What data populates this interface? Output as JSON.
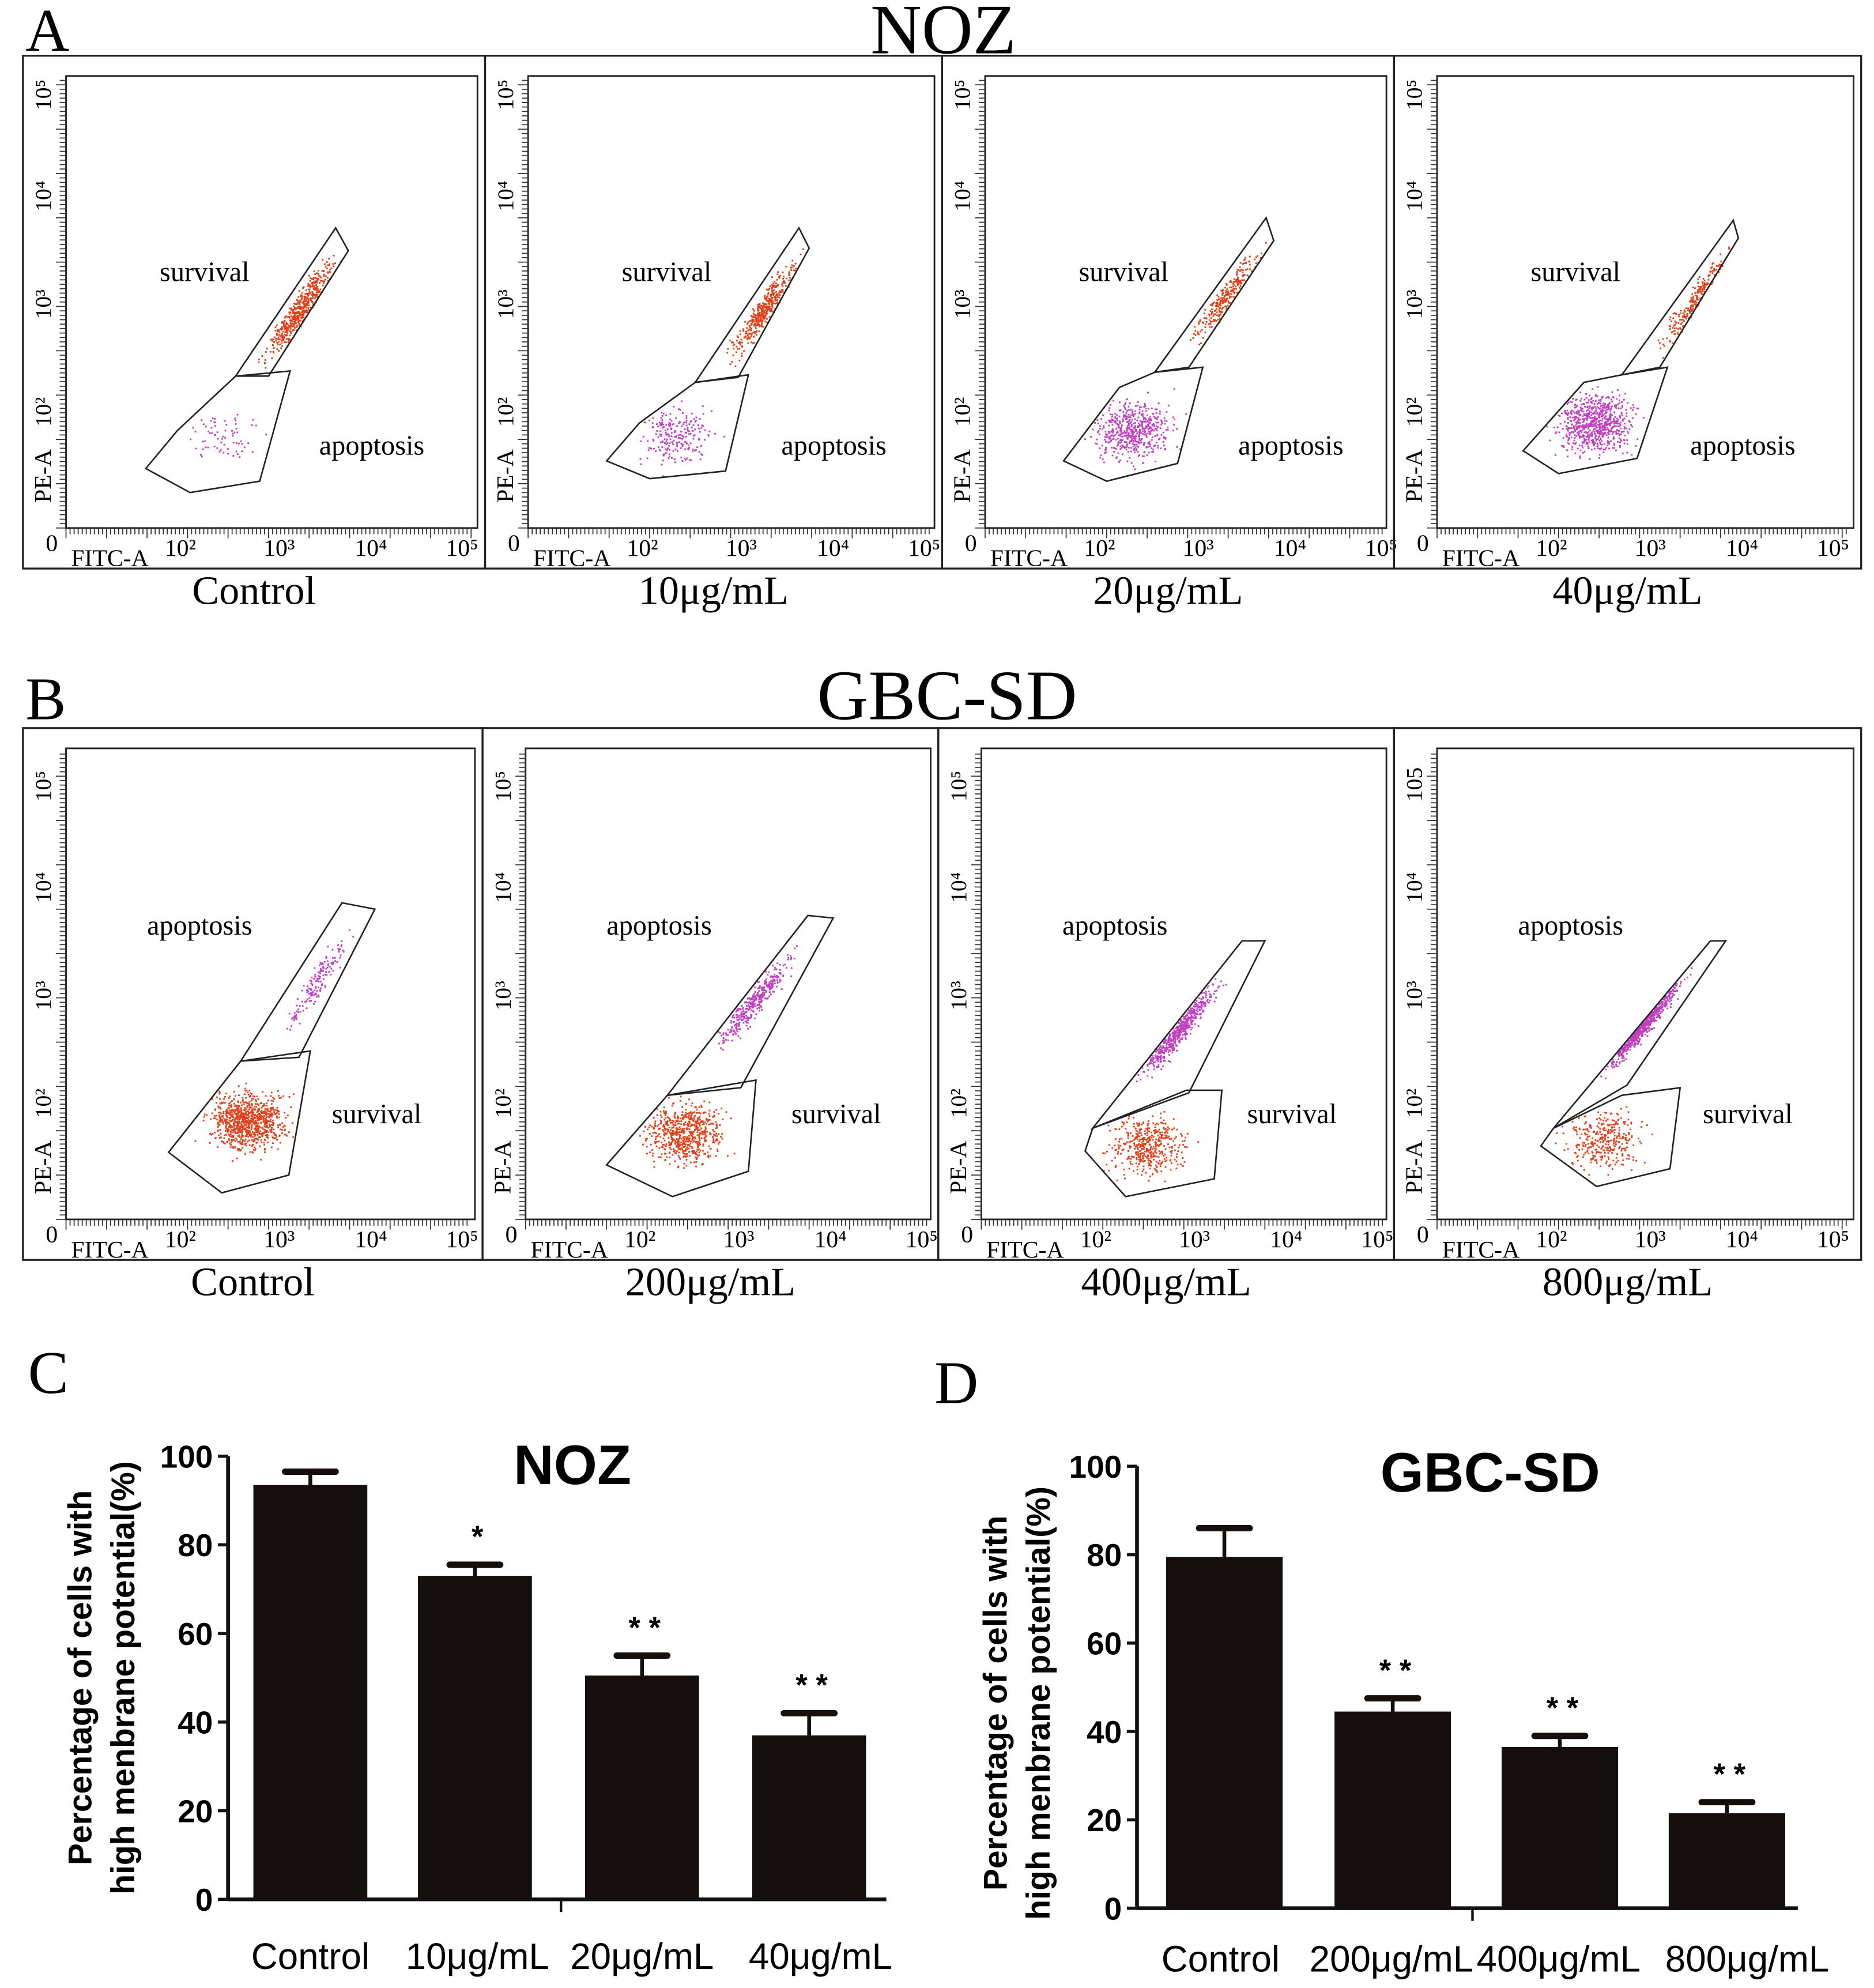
{
  "panel_letters": {
    "a": "A",
    "b": "B",
    "c": "C",
    "d": "D"
  },
  "flow_common": {
    "x_axis_label": "FITC-A",
    "y_axis_label": "PE-A",
    "x_ticks": [
      "0",
      "10²",
      "10³",
      "10⁴",
      "10⁵"
    ],
    "y_ticks": [
      "10²",
      "10³",
      "10⁴",
      "10⁵"
    ]
  },
  "panel_a": {
    "title": "NOZ",
    "upper_gate_label": "survival",
    "lower_gate_label": "apoptosis",
    "conditions": [
      "Control",
      "10μg/mL",
      "20μg/mL",
      "40μg/mL"
    ],
    "colors": {
      "upper": "#e0401a",
      "lower": "#c040c0"
    }
  },
  "panel_b": {
    "title": "GBC-SD",
    "upper_gate_label": "apoptosis",
    "lower_gate_label": "survival",
    "conditions": [
      "Control",
      "200μg/mL",
      "400μg/mL",
      "800μg/mL"
    ],
    "y_tick_top_last": "105",
    "colors": {
      "upper": "#c040c0",
      "lower": "#e0401a"
    }
  },
  "chart_data": [
    {
      "type": "bar",
      "title": "NOZ",
      "ylabel": "Percentage of cells with high menbrane potential(%)",
      "ylabel_lines": [
        "Percentage of cells with",
        "high menbrane potential(%)"
      ],
      "xlabel": "",
      "categories": [
        "Control",
        "10μg/mL",
        "20μg/mL",
        "40μg/mL"
      ],
      "values": [
        93.5,
        73,
        50.5,
        37
      ],
      "errors": [
        3,
        2.5,
        4.5,
        5
      ],
      "significance": [
        "",
        "*",
        "* *",
        "* *"
      ],
      "ylim": [
        0,
        100
      ],
      "yticks": [
        "0",
        "20",
        "40",
        "60",
        "80",
        "100"
      ],
      "bar_color": "#140f0c"
    },
    {
      "type": "bar",
      "title": "GBC-SD",
      "ylabel": "Percentage of cells with high menbrane potential(%)",
      "ylabel_lines": [
        "Percentage of cells with",
        "high menbrane potential(%)"
      ],
      "xlabel": "",
      "categories": [
        "Control",
        "200μg/mL",
        "400μg/mL",
        "800μg/mL"
      ],
      "values": [
        79.5,
        44.5,
        36.5,
        21.5
      ],
      "errors": [
        6.5,
        3,
        2.5,
        2.5
      ],
      "significance": [
        "",
        "* *",
        "* *",
        "* *"
      ],
      "ylim": [
        0,
        100
      ],
      "yticks": [
        "0",
        "20",
        "40",
        "60",
        "80",
        "100"
      ],
      "bar_color": "#140f0c"
    }
  ]
}
